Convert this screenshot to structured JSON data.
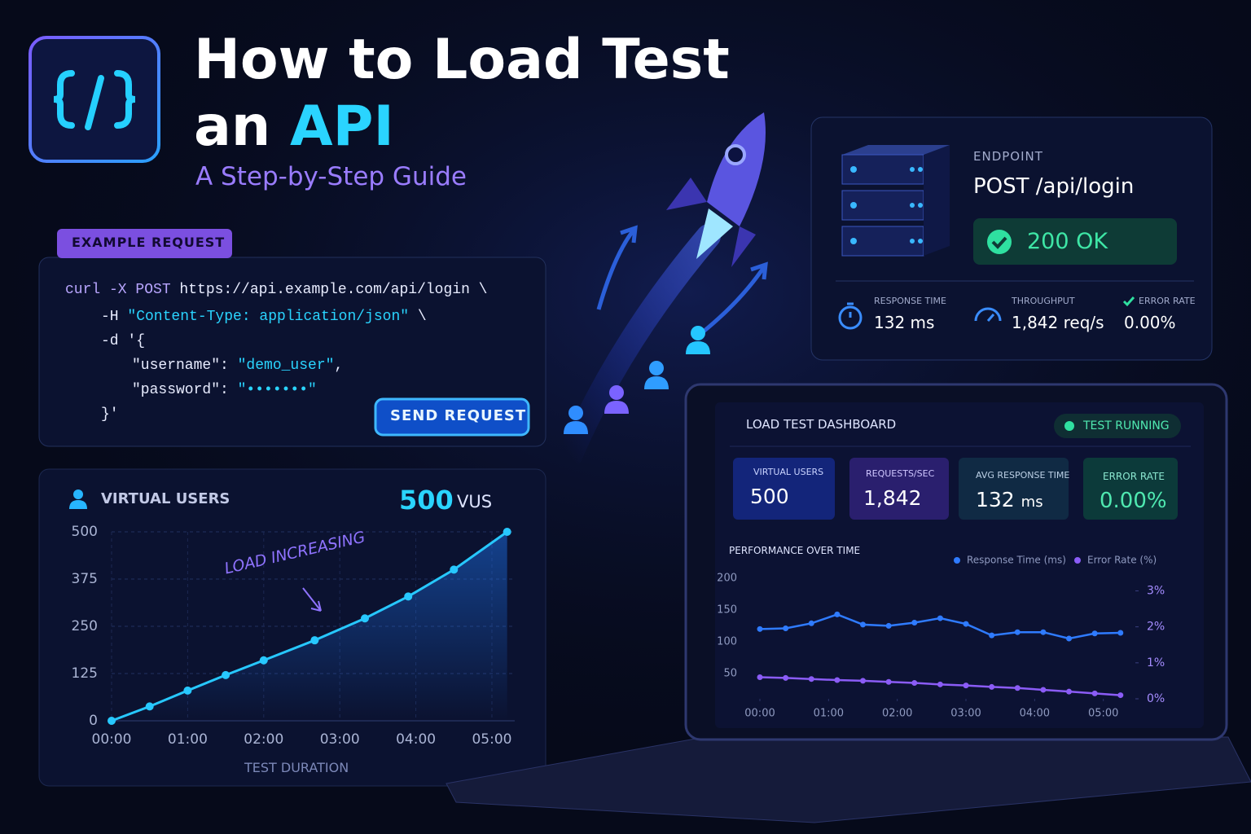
{
  "header": {
    "title_line1": "How to Load Test",
    "title_line2a": "an",
    "title_line2b": "API",
    "subtitle": "A Step-by-Step Guide"
  },
  "request": {
    "tag": "EXAMPLE REQUEST",
    "button": "SEND REQUEST",
    "code": [
      [
        {
          "text": "curl -X POST",
          "color": "#b9a6ff"
        },
        {
          "text": " https://api.example.com/api/login \\",
          "color": "#e8ecff"
        }
      ],
      [
        {
          "text": "-H ",
          "color": "#e8ecff"
        },
        {
          "text": "\"Content-Type: application/json\"",
          "color": "#2ad4ff"
        },
        {
          "text": " \\",
          "color": "#e8ecff"
        }
      ],
      [
        {
          "text": "-d '{",
          "color": "#e8ecff"
        }
      ],
      [
        {
          "text": "\"username\": ",
          "color": "#e8ecff"
        },
        {
          "text": "\"demo_user\"",
          "color": "#2ad4ff"
        },
        {
          "text": ",",
          "color": "#e8ecff"
        }
      ],
      [
        {
          "text": "\"password\": ",
          "color": "#e8ecff"
        },
        {
          "text": "\"•••••••\"",
          "color": "#2ad4ff"
        }
      ],
      [
        {
          "text": "}'",
          "color": "#e8ecff"
        }
      ]
    ]
  },
  "endpoint": {
    "label": "ENDPOINT",
    "value": "POST /api/login",
    "status": "200 OK",
    "metrics": [
      {
        "label": "RESPONSE TIME",
        "value": "132 ms"
      },
      {
        "label": "THROUGHPUT",
        "value": "1,842 req/s"
      },
      {
        "label": "ERROR RATE",
        "value": "0.00%"
      }
    ]
  },
  "dashboard": {
    "title": "LOAD TEST DASHBOARD",
    "status": "TEST RUNNING",
    "cards": [
      {
        "label": "VIRTUAL USERS",
        "value": "500"
      },
      {
        "label": "REQUESTS/SEC",
        "value": "1,842"
      },
      {
        "label": "AVG RESPONSE TIME",
        "value": "132",
        "unit": "ms"
      },
      {
        "label": "ERROR RATE",
        "value": "0.00%"
      }
    ]
  },
  "chart_data": [
    {
      "type": "line",
      "title": "VIRTUAL USERS",
      "headline_value": "500",
      "headline_unit": "VUS",
      "annotation": "LOAD INCREASING",
      "xlabel": "TEST DURATION",
      "x": [
        0,
        0.5,
        1,
        1.5,
        2,
        2.67,
        3.33,
        3.9,
        4.5,
        5.2
      ],
      "values": [
        0,
        38,
        80,
        121,
        160,
        213,
        271,
        329,
        400,
        500
      ],
      "color": "#27c8ff",
      "area": true,
      "xlim": [
        0,
        5.3
      ],
      "ylim": [
        0,
        500
      ],
      "yticks": [
        0,
        125,
        250,
        375,
        500
      ],
      "xticks": [
        {
          "value": 0,
          "label": "00:00"
        },
        {
          "value": 1,
          "label": "01:00"
        },
        {
          "value": 2,
          "label": "02:00"
        },
        {
          "value": 3,
          "label": "03:00"
        },
        {
          "value": 4,
          "label": "04:00"
        },
        {
          "value": 5,
          "label": "05:00"
        }
      ],
      "grid": true
    },
    {
      "type": "line",
      "title": "PERFORMANCE OVER TIME",
      "x": [
        0,
        0.375,
        0.75,
        1.125,
        1.5,
        1.875,
        2.25,
        2.625,
        3,
        3.375,
        3.75,
        4.125,
        4.5,
        4.875,
        5.25
      ],
      "series": [
        {
          "name": "Response Time (ms)",
          "color": "#2f7bff",
          "values": [
            120,
            121,
            129,
            143,
            127,
            125,
            130,
            137,
            128,
            110,
            115,
            115,
            105,
            113,
            114
          ]
        },
        {
          "name": "Error Rate (%)",
          "color": "#8b5cf6",
          "axis": "y2",
          "values": [
            0.6,
            0.58,
            0.55,
            0.52,
            0.5,
            0.47,
            0.44,
            0.4,
            0.37,
            0.33,
            0.3,
            0.25,
            0.2,
            0.15,
            0.1
          ]
        }
      ],
      "xlim": [
        0,
        5.3
      ],
      "ylim": [
        10,
        200
      ],
      "yticks": [
        50,
        100,
        150,
        200
      ],
      "y2lim": [
        0,
        3.35
      ],
      "y2ticks": [
        {
          "value": 0,
          "label": "0%"
        },
        {
          "value": 1,
          "label": "1%"
        },
        {
          "value": 2,
          "label": "2%"
        },
        {
          "value": 3,
          "label": "3%"
        }
      ],
      "xticks": [
        {
          "value": 0,
          "label": "00:00"
        },
        {
          "value": 1,
          "label": "01:00"
        },
        {
          "value": 2,
          "label": "02:00"
        },
        {
          "value": 3,
          "label": "03:00"
        },
        {
          "value": 4,
          "label": "04:00"
        },
        {
          "value": 5,
          "label": "05:00"
        }
      ],
      "grid": false
    }
  ]
}
